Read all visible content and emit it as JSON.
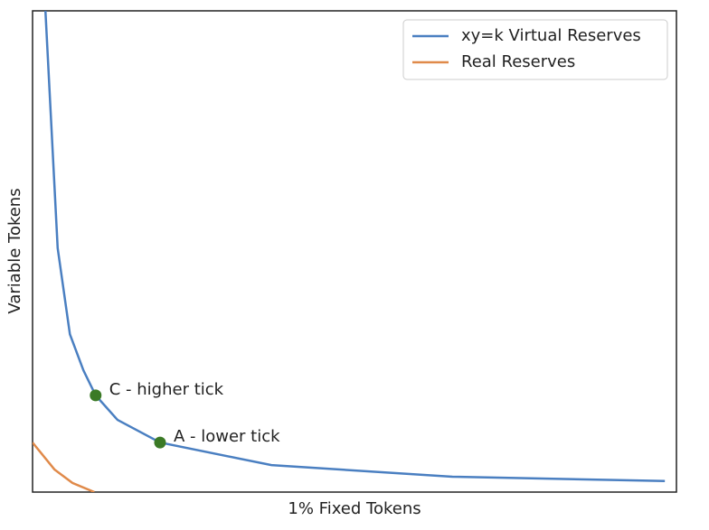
{
  "chart_data": {
    "type": "line",
    "x_label": "1% Fixed Tokens",
    "y_label": "Variable Tokens",
    "xlim": [
      0,
      100
    ],
    "ylim": [
      0,
      100
    ],
    "legend": "upper right",
    "series": [
      {
        "name": "xy=k Virtual Reserves",
        "color": "#4a7fc1",
        "x": [
          2.0,
          3.9,
          5.8,
          7.9,
          9.8,
          13.2,
          19.8,
          37.1,
          65.2,
          98.2
        ],
        "values": [
          100,
          50.7,
          32.8,
          25.3,
          20.1,
          15.0,
          10.3,
          5.6,
          3.2,
          2.3
        ]
      },
      {
        "name": "Real Reserves",
        "color": "#e08a4a",
        "x": [
          0,
          3.4,
          6.2,
          9.6
        ],
        "values": [
          10.3,
          4.7,
          1.9,
          0
        ]
      }
    ],
    "annotations": [
      {
        "text": "C - higher tick",
        "x": 9.8,
        "y": 20.1,
        "color": "#3b7a26"
      },
      {
        "text": "A - lower tick",
        "x": 19.8,
        "y": 10.3,
        "color": "#3b7a26"
      }
    ]
  }
}
